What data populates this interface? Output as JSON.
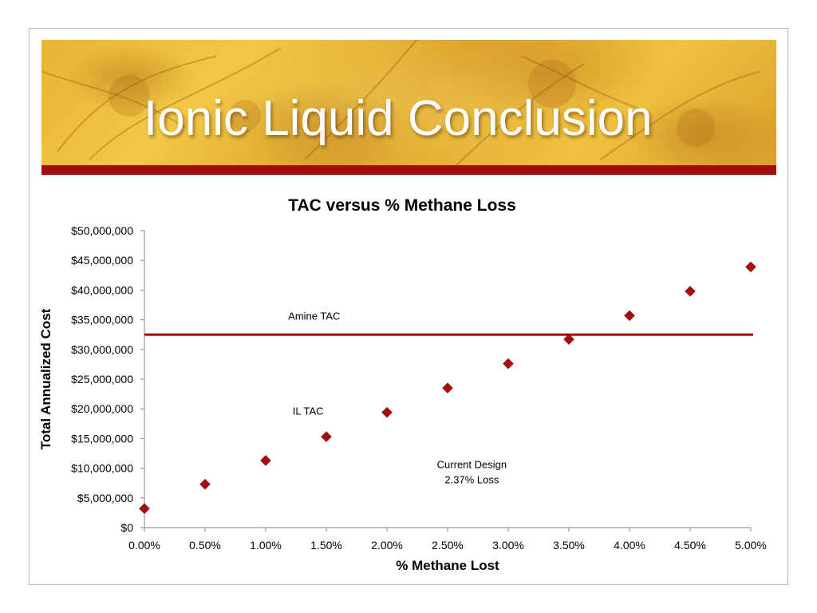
{
  "slide": {
    "title": "Ionic Liquid Conclusion",
    "colors": {
      "accent_bar": "#a50d0d",
      "marker": "#a50d0d",
      "reference_line": "#a50d0d"
    }
  },
  "chart_data": {
    "type": "scatter",
    "title": "TAC versus % Methane Loss",
    "xlabel": "% Methane Lost",
    "ylabel": "Total Annualized Cost",
    "xlim": [
      0,
      5
    ],
    "ylim": [
      0,
      50000000
    ],
    "x_ticks": [
      0,
      0.5,
      1,
      1.5,
      2,
      2.5,
      3,
      3.5,
      4,
      4.5,
      5
    ],
    "x_tick_labels": [
      "0.00%",
      "0.50%",
      "1.00%",
      "1.50%",
      "2.00%",
      "2.50%",
      "3.00%",
      "3.50%",
      "4.00%",
      "4.50%",
      "5.00%"
    ],
    "y_ticks": [
      0,
      5000000,
      10000000,
      15000000,
      20000000,
      25000000,
      30000000,
      35000000,
      40000000,
      45000000,
      50000000
    ],
    "y_tick_labels": [
      "$0",
      "$5,000,000",
      "$10,000,000",
      "$15,000,000",
      "$20,000,000",
      "$25,000,000",
      "$30,000,000",
      "$35,000,000",
      "$40,000,000",
      "$45,000,000",
      "$50,000,000"
    ],
    "grid": false,
    "series": [
      {
        "name": "IL TAC",
        "marker": "diamond",
        "x": [
          0,
          0.5,
          1,
          1.5,
          2,
          2.5,
          3,
          3.5,
          4,
          4.5,
          5
        ],
        "y": [
          3200000,
          7300000,
          11300000,
          15300000,
          19400000,
          23500000,
          27600000,
          31700000,
          35700000,
          39800000,
          43900000
        ]
      }
    ],
    "reference_lines": [
      {
        "name": "Amine TAC",
        "orientation": "horizontal",
        "y": 32500000
      }
    ],
    "annotations": [
      {
        "lines": [
          "Amine TAC"
        ],
        "x": 1.4,
        "y": 35000000
      },
      {
        "lines": [
          "IL TAC"
        ],
        "x": 1.35,
        "y": 19000000
      },
      {
        "lines": [
          "Current Design",
          "2.37% Loss"
        ],
        "x": 2.7,
        "y": 10000000
      }
    ]
  }
}
